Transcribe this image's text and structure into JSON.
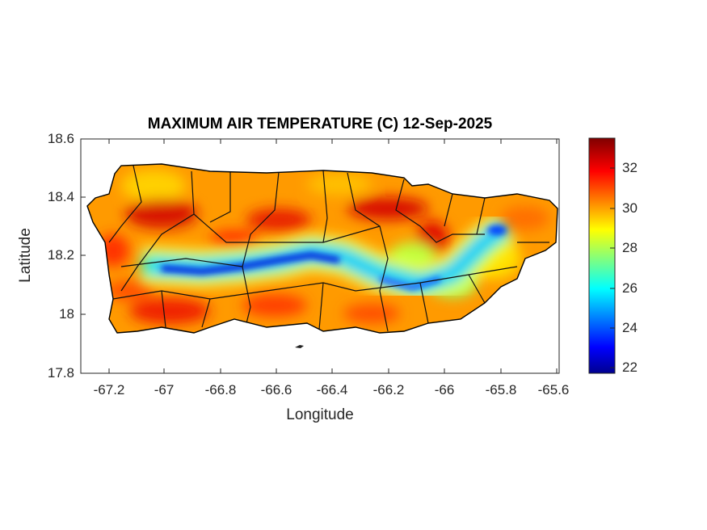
{
  "chart_data": {
    "type": "heatmap",
    "title": "MAXIMUM AIR TEMPERATURE (C) 12-Sep-2025",
    "xlabel": "Longitude",
    "ylabel": "Latitude",
    "xlim": [
      -67.3,
      -65.59
    ],
    "ylim": [
      17.8,
      18.6
    ],
    "xticks": [
      "-67.2",
      "-67",
      "-66.8",
      "-66.6",
      "-66.4",
      "-66.2",
      "-66",
      "-65.8",
      "-65.6"
    ],
    "yticks": [
      "18.6",
      "18.4",
      "18.2",
      "18",
      "17.8"
    ],
    "colorbar": {
      "colormap": "jet",
      "range": [
        21.7,
        33.5
      ],
      "ticks": [
        "32",
        "30",
        "28",
        "26",
        "24",
        "22"
      ]
    },
    "region": "Puerto Rico with municipality boundaries",
    "pattern": "Warmest (31-33 C) on north and south coastal plains; coolest (22-26 C) along central mountain range"
  },
  "colors": {
    "coast_hot": "#e03000",
    "mountain_cool": "#0020d0"
  }
}
